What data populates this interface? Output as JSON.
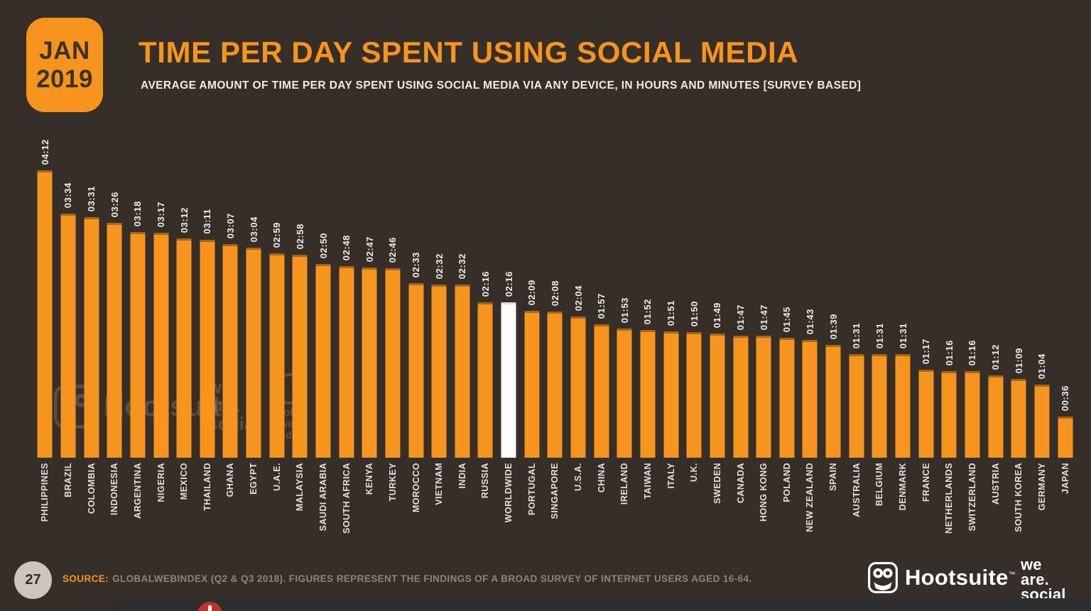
{
  "header": {
    "date_badge": {
      "month": "JAN",
      "year": "2019"
    },
    "title": "TIME PER DAY SPENT USING SOCIAL MEDIA",
    "subtitle": "AVERAGE AMOUNT OF TIME PER DAY SPENT USING SOCIAL MEDIA VIA ANY DEVICE, IN HOURS AND MINUTES [SURVEY BASED]"
  },
  "chart_data": {
    "type": "bar",
    "title": "TIME PER DAY SPENT USING SOCIAL MEDIA",
    "unit": "hours:minutes per day (hh:mm)",
    "categories": [
      "PHILIPPINES",
      "BRAZIL",
      "COLOMBIA",
      "INDONESIA",
      "ARGENTINA",
      "NIGERIA",
      "MEXICO",
      "THAILAND",
      "GHANA",
      "EGYPT",
      "U.A.E.",
      "MALAYSIA",
      "SAUDI ARABIA",
      "SOUTH AFRICA",
      "KENYA",
      "TURKEY",
      "MOROCCO",
      "VIETNAM",
      "INDIA",
      "RUSSIA",
      "WORLDWIDE",
      "PORTUGAL",
      "SINGAPORE",
      "U.S.A.",
      "CHINA",
      "IRELAND",
      "TAIWAN",
      "ITALY",
      "U.K.",
      "SWEDEN",
      "CANADA",
      "HONG KONG",
      "POLAND",
      "NEW ZEALAND",
      "SPAIN",
      "AUSTRALIA",
      "BELGIUM",
      "DENMARK",
      "FRANCE",
      "NETHERLANDS",
      "SWITZERLAND",
      "AUSTRIA",
      "SOUTH KOREA",
      "GERMANY",
      "JAPAN"
    ],
    "values_hhmm": [
      "04:12",
      "03:34",
      "03:31",
      "03:26",
      "03:18",
      "03:17",
      "03:12",
      "03:11",
      "03:07",
      "03:04",
      "02:59",
      "02:58",
      "02:50",
      "02:48",
      "02:47",
      "02:46",
      "02:33",
      "02:32",
      "02:32",
      "02:16",
      "02:16",
      "02:09",
      "02:08",
      "02:04",
      "01:57",
      "01:53",
      "01:52",
      "01:51",
      "01:50",
      "01:49",
      "01:47",
      "01:47",
      "01:45",
      "01:43",
      "01:39",
      "01:31",
      "01:31",
      "01:31",
      "01:17",
      "01:16",
      "01:16",
      "01:12",
      "01:09",
      "01:04",
      "00:36"
    ],
    "values_minutes": [
      252,
      214,
      211,
      206,
      198,
      197,
      192,
      191,
      187,
      184,
      179,
      178,
      170,
      168,
      167,
      166,
      153,
      152,
      152,
      136,
      136,
      129,
      128,
      124,
      117,
      113,
      112,
      111,
      110,
      109,
      107,
      107,
      105,
      103,
      99,
      91,
      91,
      91,
      77,
      76,
      76,
      72,
      69,
      64,
      36
    ],
    "highlight_category": "WORLDWIDE",
    "bar_color": "#F7941D",
    "highlight_color": "#FFFFFF",
    "ylim_minutes": [
      0,
      252
    ],
    "grid": false,
    "legend": false
  },
  "watermarks": {
    "hootsuite": "Hootsuite",
    "we_are_social_lines": [
      "we",
      "are.",
      "social"
    ],
    "gwi_lines": [
      "global",
      "web",
      "index"
    ]
  },
  "footer": {
    "page_number": "27",
    "source_label": "SOURCE:",
    "source_text": "GLOBALWEBINDEX (Q2 & Q3 2018). FIGURES REPRESENT THE FINDINGS OF A BROAD SURVEY OF INTERNET USERS AGED 16-64.",
    "hootsuite_label": "Hootsuite",
    "hootsuite_tm": "™",
    "we_are_social_lines": [
      "we",
      "are.",
      "social"
    ]
  }
}
